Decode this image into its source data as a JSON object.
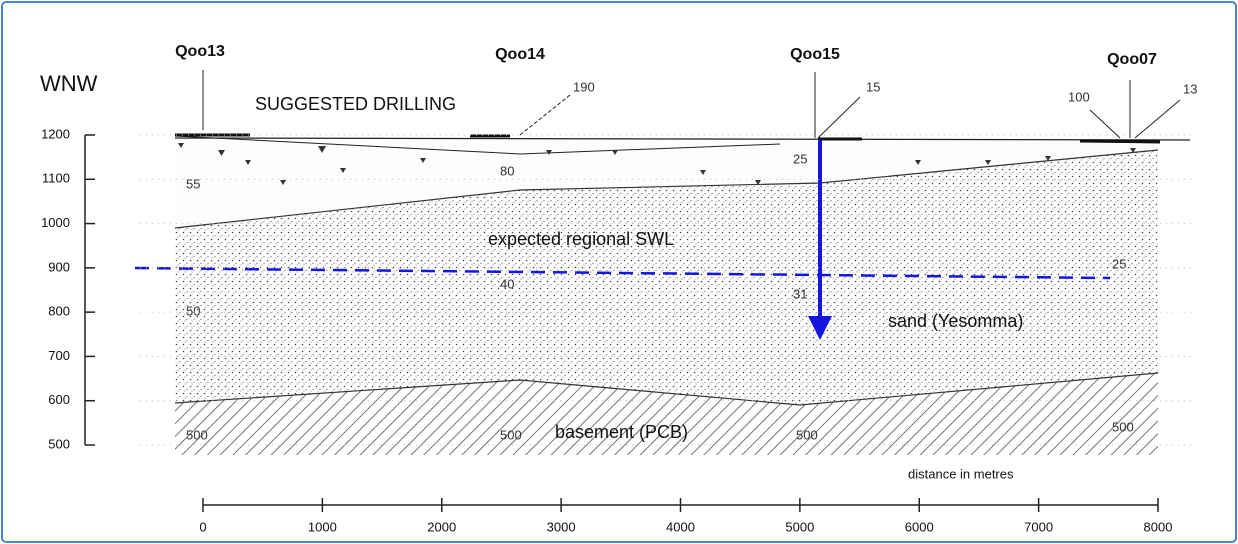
{
  "header": {
    "direction": "WNW"
  },
  "wells": [
    {
      "label": "Qoo13"
    },
    {
      "label": "Qoo14"
    },
    {
      "label": "Qoo15"
    },
    {
      "label": "Qoo07"
    }
  ],
  "depth_labels": [
    "190",
    "15",
    "100",
    "13"
  ],
  "layer_numbers": [
    "55",
    "80",
    "25",
    "50",
    "40",
    "31",
    "25",
    "500",
    "500",
    "500",
    "500"
  ],
  "annotations": {
    "drilling": "SUGGESTED DRILLING",
    "swl": "expected regional SWL",
    "sand": "sand (Yesomma)",
    "basement": "basement (PCB)"
  },
  "y_axis": {
    "ticks": [
      500,
      600,
      700,
      800,
      900,
      1000,
      1100,
      1200
    ]
  },
  "x_axis": {
    "label": "distance in metres",
    "ticks": [
      0,
      1000,
      2000,
      3000,
      4000,
      5000,
      6000,
      7000,
      8000
    ]
  }
}
